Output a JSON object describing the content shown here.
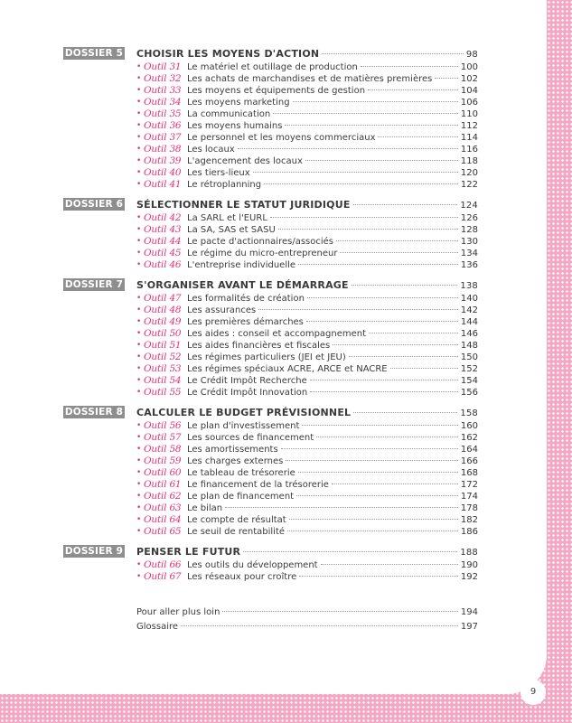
{
  "dossiers": [
    {
      "tag": "DOSSIER 5",
      "title": "CHOISIR LES MOYENS D'ACTION",
      "page": "98",
      "items": [
        {
          "outil": "Outil 31",
          "label": "Le matériel et outillage de production",
          "page": "100"
        },
        {
          "outil": "Outil 32",
          "label": "Les achats de marchandises et de matières premières",
          "page": "102"
        },
        {
          "outil": "Outil 33",
          "label": "Les moyens et équipements de gestion",
          "page": "104"
        },
        {
          "outil": "Outil 34",
          "label": "Les moyens marketing",
          "page": "106"
        },
        {
          "outil": "Outil 35",
          "label": "La communication",
          "page": "110"
        },
        {
          "outil": "Outil 36",
          "label": "Les moyens humains",
          "page": "112"
        },
        {
          "outil": "Outil 37",
          "label": "Le personnel et les moyens commerciaux",
          "page": "114"
        },
        {
          "outil": "Outil 38",
          "label": "Les locaux",
          "page": "116"
        },
        {
          "outil": "Outil 39",
          "label": "L'agencement des locaux",
          "page": "118"
        },
        {
          "outil": "Outil 40",
          "label": "Les tiers-lieux",
          "page": "120"
        },
        {
          "outil": "Outil 41",
          "label": "Le rétroplanning",
          "page": "122"
        }
      ]
    },
    {
      "tag": "DOSSIER 6",
      "title": "SÉLECTIONNER LE STATUT JURIDIQUE",
      "page": "124",
      "items": [
        {
          "outil": "Outil 42",
          "label": "La SARL et l'EURL",
          "page": "126"
        },
        {
          "outil": "Outil 43",
          "label": "La SA, SAS et SASU",
          "page": "128"
        },
        {
          "outil": "Outil 44",
          "label": "Le pacte d'actionnaires/associés",
          "page": "130"
        },
        {
          "outil": "Outil 45",
          "label": "Le régime du micro-entrepreneur",
          "page": "134"
        },
        {
          "outil": "Outil 46",
          "label": "L'entreprise individuelle",
          "page": "136"
        }
      ]
    },
    {
      "tag": "DOSSIER 7",
      "title": "S'ORGANISER AVANT LE DÉMARRAGE",
      "page": "138",
      "items": [
        {
          "outil": "Outil 47",
          "label": "Les formalités de création",
          "page": "140"
        },
        {
          "outil": "Outil 48",
          "label": "Les assurances",
          "page": "142"
        },
        {
          "outil": "Outil 49",
          "label": "Les premières démarches",
          "page": "144"
        },
        {
          "outil": "Outil 50",
          "label": "Les aides : conseil et accompagnement",
          "page": "146"
        },
        {
          "outil": "Outil 51",
          "label": "Les aides financières et fiscales",
          "page": "148"
        },
        {
          "outil": "Outil 52",
          "label": "Les régimes particuliers (JEI et JEU)",
          "page": "150"
        },
        {
          "outil": "Outil 53",
          "label": "Les régimes spéciaux ACRE, ARCE et NACRE",
          "page": "152"
        },
        {
          "outil": "Outil 54",
          "label": "Le Crédit Impôt Recherche",
          "page": "154"
        },
        {
          "outil": "Outil 55",
          "label": "Le Crédit Impôt Innovation",
          "page": "156"
        }
      ]
    },
    {
      "tag": "DOSSIER 8",
      "title": "CALCULER LE BUDGET PRÉVISIONNEL",
      "page": "158",
      "items": [
        {
          "outil": "Outil 56",
          "label": "Le plan d'investissement",
          "page": "160"
        },
        {
          "outil": "Outil 57",
          "label": "Les sources de financement",
          "page": "162"
        },
        {
          "outil": "Outil 58",
          "label": "Les amortissements",
          "page": "164"
        },
        {
          "outil": "Outil 59",
          "label": "Les charges externes",
          "page": "166"
        },
        {
          "outil": "Outil 60",
          "label": "Le tableau de trésorerie",
          "page": "168"
        },
        {
          "outil": "Outil 61",
          "label": "Le financement de la trésorerie",
          "page": "172"
        },
        {
          "outil": "Outil 62",
          "label": "Le plan de financement",
          "page": "174"
        },
        {
          "outil": "Outil 63",
          "label": "Le bilan",
          "page": "178"
        },
        {
          "outil": "Outil 64",
          "label": "Le compte de résultat",
          "page": "182"
        },
        {
          "outil": "Outil 65",
          "label": "Le seuil de rentabilité",
          "page": "186"
        }
      ]
    },
    {
      "tag": "DOSSIER 9",
      "title": "PENSER LE FUTUR",
      "page": "188",
      "items": [
        {
          "outil": "Outil 66",
          "label": "Les outils du développement",
          "page": "190"
        },
        {
          "outil": "Outil 67",
          "label": "Les réseaux pour croître",
          "page": "192"
        }
      ]
    }
  ],
  "extras": [
    {
      "label": "Pour aller plus loin",
      "page": "194"
    },
    {
      "label": "Glossaire",
      "page": "197"
    }
  ],
  "page_number": "9",
  "colors": {
    "accent": "#ea2f79",
    "tag_bg": "#8e8e8e",
    "dots_bg": "#f3a7c3"
  }
}
